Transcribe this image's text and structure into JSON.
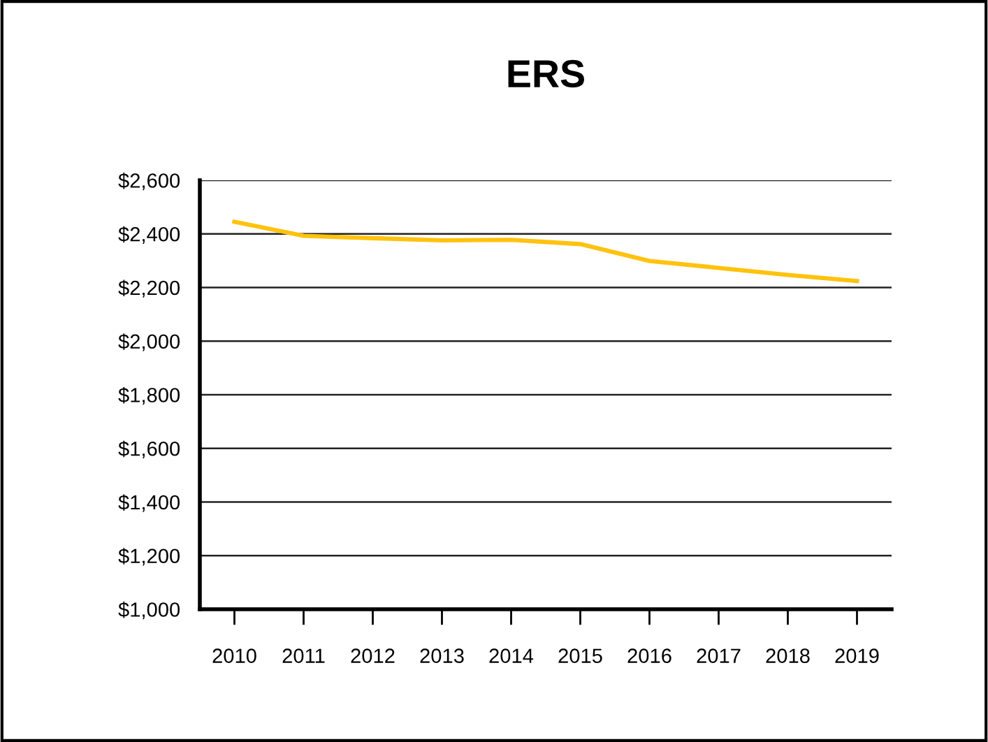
{
  "chart_data": {
    "type": "line",
    "title": "ERS",
    "categories": [
      "2010",
      "2011",
      "2012",
      "2013",
      "2014",
      "2015",
      "2016",
      "2017",
      "2018",
      "2019"
    ],
    "series": [
      {
        "color": "#ffc20e",
        "values": [
          2445,
          2393,
          2384,
          2376,
          2378,
          2362,
          2299,
          2273,
          2247,
          2224
        ]
      }
    ],
    "ylim": [
      1000,
      2600
    ],
    "yticks": [
      {
        "value": 1000,
        "label": "$1,000"
      },
      {
        "value": 1200,
        "label": "$1,200"
      },
      {
        "value": 1400,
        "label": "$1,400"
      },
      {
        "value": 1600,
        "label": "$1,600"
      },
      {
        "value": 1800,
        "label": "$1,800"
      },
      {
        "value": 2000,
        "label": "$2,000"
      },
      {
        "value": 2200,
        "label": "$2,200"
      },
      {
        "value": 2400,
        "label": "$2,400"
      },
      {
        "value": 2600,
        "label": "$2,600"
      }
    ],
    "grid": "y",
    "legend": false,
    "marker": "none",
    "line_style": "solid"
  }
}
